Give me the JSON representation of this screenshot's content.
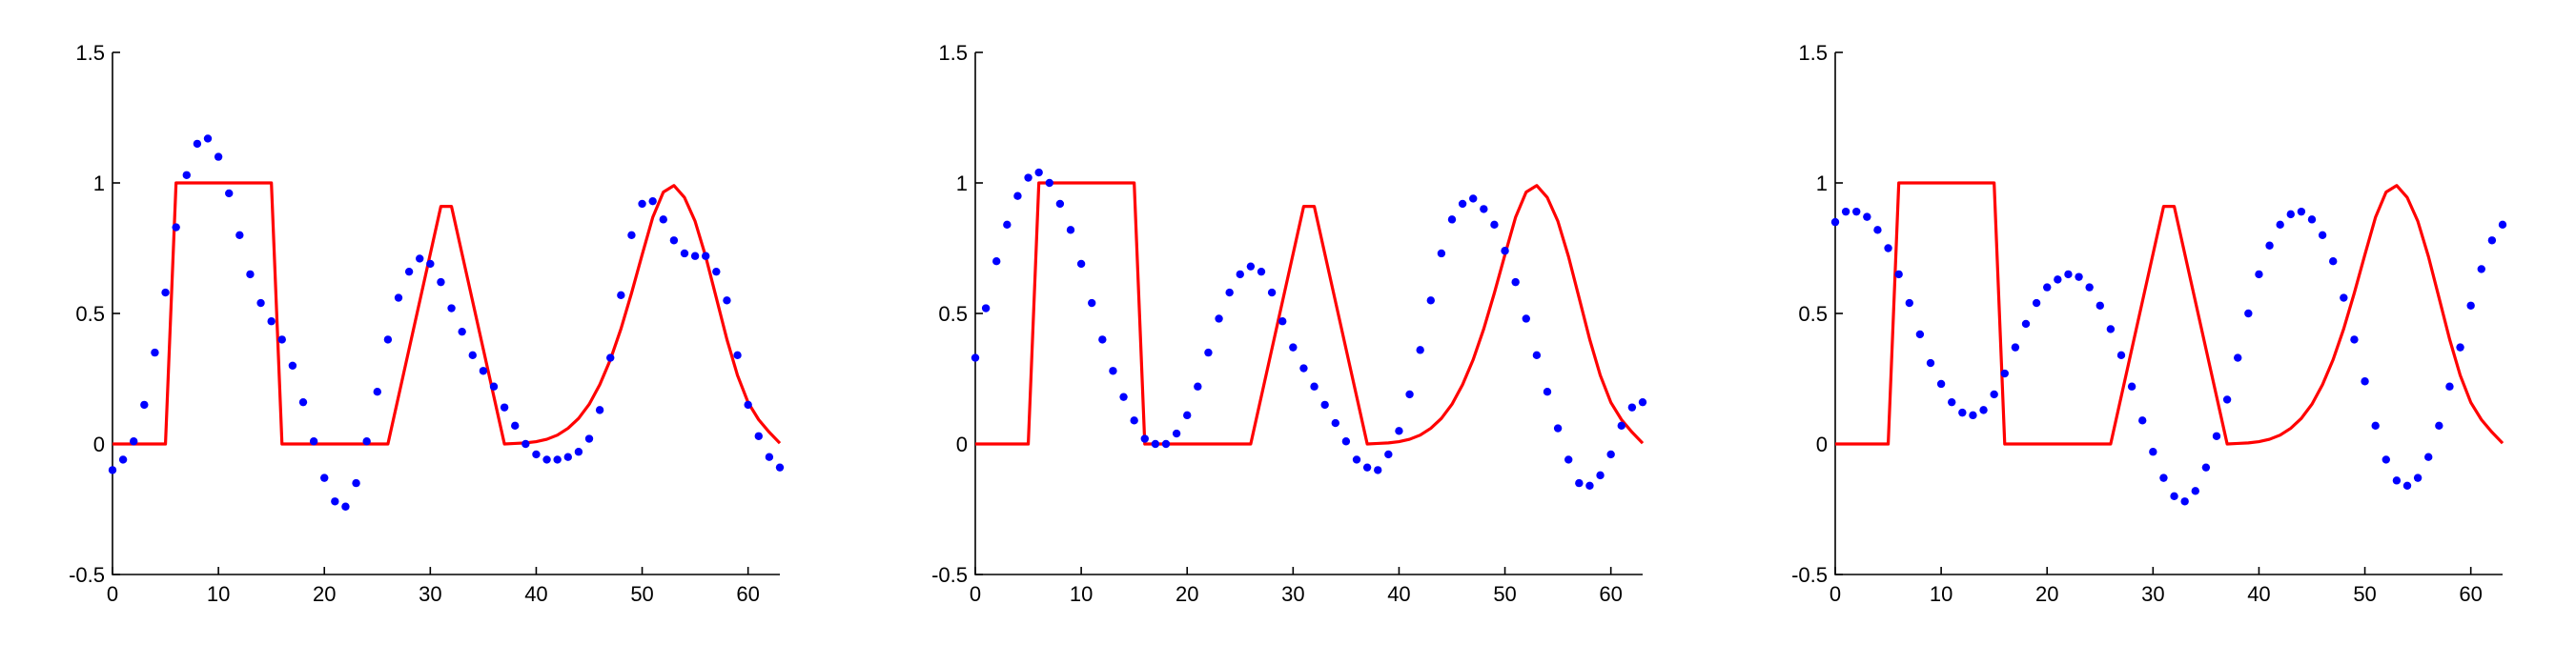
{
  "chart_data": [
    {
      "type": "scatter",
      "title": "",
      "xlabel": "",
      "ylabel": "",
      "xlim": [
        0,
        63
      ],
      "ylim": [
        -0.5,
        1.5
      ],
      "xticks": [
        0,
        10,
        20,
        30,
        40,
        50,
        60
      ],
      "yticks": [
        -0.5,
        0,
        0.5,
        1,
        1.5
      ],
      "grid": false,
      "series": [
        {
          "style": "line",
          "color": "#ff0000",
          "x": [
            0,
            5,
            6,
            15,
            16,
            26,
            31,
            32,
            37,
            38,
            39,
            40,
            41,
            42,
            43,
            44,
            45,
            46,
            47,
            48,
            49,
            50,
            51,
            52,
            53,
            54,
            55,
            56,
            57,
            58,
            59,
            60,
            61,
            62,
            63
          ],
          "y": [
            0,
            0,
            1,
            1,
            0,
            0,
            0.91,
            0.91,
            0,
            0.002,
            0.004,
            0.009,
            0.018,
            0.034,
            0.06,
            0.098,
            0.152,
            0.227,
            0.323,
            0.441,
            0.578,
            0.725,
            0.868,
            0.965,
            0.99,
            0.944,
            0.853,
            0.718,
            0.56,
            0.401,
            0.263,
            0.159,
            0.093,
            0.045,
            0.003
          ]
        },
        {
          "style": "markers",
          "color": "#0000ff",
          "x": [
            0,
            1,
            2,
            3,
            4,
            5,
            6,
            7,
            8,
            9,
            10,
            11,
            12,
            13,
            14,
            15,
            16,
            17,
            18,
            19,
            20,
            21,
            22,
            23,
            24,
            25,
            26,
            27,
            28,
            29,
            30,
            31,
            32,
            33,
            34,
            35,
            36,
            37,
            38,
            39,
            40,
            41,
            42,
            43,
            44,
            45,
            46,
            47,
            48,
            49,
            50,
            51,
            52,
            53,
            54,
            55,
            56,
            57,
            58,
            59,
            60,
            61,
            62,
            63
          ],
          "y": [
            -0.1,
            -0.06,
            0.01,
            0.15,
            0.35,
            0.58,
            0.83,
            1.03,
            1.15,
            1.17,
            1.1,
            0.96,
            0.8,
            0.65,
            0.54,
            0.47,
            0.4,
            0.3,
            0.16,
            0.01,
            -0.13,
            -0.22,
            -0.24,
            -0.15,
            0.01,
            0.2,
            0.4,
            0.56,
            0.66,
            0.71,
            0.69,
            0.62,
            0.52,
            0.43,
            0.34,
            0.28,
            0.22,
            0.14,
            0.07,
            0.0,
            -0.04,
            -0.06,
            -0.06,
            -0.05,
            -0.03,
            0.02,
            0.13,
            0.33,
            0.57,
            0.8,
            0.92,
            0.93,
            0.86,
            0.78,
            0.73,
            0.72,
            0.72,
            0.66,
            0.55,
            0.34,
            0.15,
            0.03,
            -0.05,
            -0.09
          ]
        }
      ]
    },
    {
      "type": "scatter",
      "title": "",
      "xlabel": "",
      "ylabel": "",
      "xlim": [
        0,
        63
      ],
      "ylim": [
        -0.5,
        1.5
      ],
      "xticks": [
        0,
        10,
        20,
        30,
        40,
        50,
        60
      ],
      "yticks": [
        -0.5,
        0,
        0.5,
        1,
        1.5
      ],
      "grid": false,
      "series": [
        {
          "style": "line",
          "color": "#ff0000",
          "x": [
            0,
            5,
            6,
            15,
            16,
            26,
            31,
            32,
            37,
            38,
            39,
            40,
            41,
            42,
            43,
            44,
            45,
            46,
            47,
            48,
            49,
            50,
            51,
            52,
            53,
            54,
            55,
            56,
            57,
            58,
            59,
            60,
            61,
            62,
            63
          ],
          "y": [
            0,
            0,
            1,
            1,
            0,
            0,
            0.91,
            0.91,
            0,
            0.002,
            0.004,
            0.009,
            0.018,
            0.034,
            0.06,
            0.098,
            0.152,
            0.227,
            0.323,
            0.441,
            0.578,
            0.725,
            0.868,
            0.965,
            0.99,
            0.944,
            0.853,
            0.718,
            0.56,
            0.401,
            0.263,
            0.159,
            0.093,
            0.045,
            0.003
          ]
        },
        {
          "style": "markers",
          "color": "#0000ff",
          "x": [
            0,
            1,
            2,
            3,
            4,
            5,
            6,
            7,
            8,
            9,
            10,
            11,
            12,
            13,
            14,
            15,
            16,
            17,
            18,
            19,
            20,
            21,
            22,
            23,
            24,
            25,
            26,
            27,
            28,
            29,
            30,
            31,
            32,
            33,
            34,
            35,
            36,
            37,
            38,
            39,
            40,
            41,
            42,
            43,
            44,
            45,
            46,
            47,
            48,
            49,
            50,
            51,
            52,
            53,
            54,
            55,
            56,
            57,
            58,
            59,
            60,
            61,
            62,
            63
          ],
          "y": [
            0.33,
            0.52,
            0.7,
            0.84,
            0.95,
            1.02,
            1.04,
            1.0,
            0.92,
            0.82,
            0.69,
            0.54,
            0.4,
            0.28,
            0.18,
            0.09,
            0.02,
            0.0,
            0.0,
            0.04,
            0.11,
            0.22,
            0.35,
            0.48,
            0.58,
            0.65,
            0.68,
            0.66,
            0.58,
            0.47,
            0.37,
            0.29,
            0.22,
            0.15,
            0.08,
            0.01,
            -0.06,
            -0.09,
            -0.1,
            -0.04,
            0.05,
            0.19,
            0.36,
            0.55,
            0.73,
            0.86,
            0.92,
            0.94,
            0.9,
            0.84,
            0.74,
            0.62,
            0.48,
            0.34,
            0.2,
            0.06,
            -0.06,
            -0.15,
            -0.16,
            -0.12,
            -0.04,
            0.07,
            0.14,
            0.16
          ]
        }
      ]
    },
    {
      "type": "scatter",
      "title": "",
      "xlabel": "",
      "ylabel": "",
      "xlim": [
        0,
        63
      ],
      "ylim": [
        -0.5,
        1.5
      ],
      "xticks": [
        0,
        10,
        20,
        30,
        40,
        50,
        60
      ],
      "yticks": [
        -0.5,
        0,
        0.5,
        1,
        1.5
      ],
      "grid": false,
      "series": [
        {
          "style": "line",
          "color": "#ff0000",
          "x": [
            0,
            5,
            6,
            15,
            16,
            26,
            31,
            32,
            37,
            38,
            39,
            40,
            41,
            42,
            43,
            44,
            45,
            46,
            47,
            48,
            49,
            50,
            51,
            52,
            53,
            54,
            55,
            56,
            57,
            58,
            59,
            60,
            61,
            62,
            63
          ],
          "y": [
            0,
            0,
            1,
            1,
            0,
            0,
            0.91,
            0.91,
            0,
            0.002,
            0.004,
            0.009,
            0.018,
            0.034,
            0.06,
            0.098,
            0.152,
            0.227,
            0.323,
            0.441,
            0.578,
            0.725,
            0.868,
            0.965,
            0.99,
            0.944,
            0.853,
            0.718,
            0.56,
            0.401,
            0.263,
            0.159,
            0.093,
            0.045,
            0.003
          ]
        },
        {
          "style": "markers",
          "color": "#0000ff",
          "x": [
            0,
            1,
            2,
            3,
            4,
            5,
            6,
            7,
            8,
            9,
            10,
            11,
            12,
            13,
            14,
            15,
            16,
            17,
            18,
            19,
            20,
            21,
            22,
            23,
            24,
            25,
            26,
            27,
            28,
            29,
            30,
            31,
            32,
            33,
            34,
            35,
            36,
            37,
            38,
            39,
            40,
            41,
            42,
            43,
            44,
            45,
            46,
            47,
            48,
            49,
            50,
            51,
            52,
            53,
            54,
            55,
            56,
            57,
            58,
            59,
            60,
            61,
            62,
            63
          ],
          "y": [
            0.85,
            0.89,
            0.89,
            0.87,
            0.82,
            0.75,
            0.65,
            0.54,
            0.42,
            0.31,
            0.23,
            0.16,
            0.12,
            0.11,
            0.13,
            0.19,
            0.27,
            0.37,
            0.46,
            0.54,
            0.6,
            0.63,
            0.65,
            0.64,
            0.6,
            0.53,
            0.44,
            0.34,
            0.22,
            0.09,
            -0.03,
            -0.13,
            -0.2,
            -0.22,
            -0.18,
            -0.09,
            0.03,
            0.17,
            0.33,
            0.5,
            0.65,
            0.76,
            0.84,
            0.88,
            0.89,
            0.86,
            0.8,
            0.7,
            0.56,
            0.4,
            0.24,
            0.07,
            -0.06,
            -0.14,
            -0.16,
            -0.13,
            -0.05,
            0.07,
            0.22,
            0.37,
            0.53,
            0.67,
            0.78,
            0.84
          ]
        }
      ]
    }
  ]
}
